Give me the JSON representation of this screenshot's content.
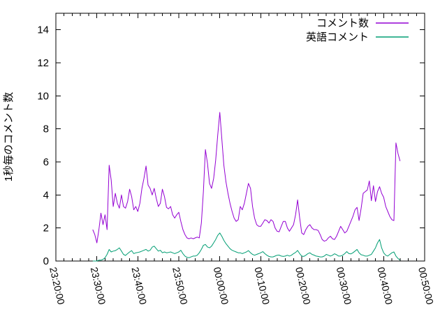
{
  "chart_data": {
    "type": "line",
    "title": "",
    "xlabel": "",
    "ylabel": "1秒毎のコメント数",
    "ylim": [
      0,
      15
    ],
    "grid": false,
    "legend_position": "top-right-inside",
    "background_color": "#ffffff",
    "axis_color": "#000000",
    "x_axis": {
      "start": "23:20:00",
      "end": "00:50:00",
      "span_seconds": 5400,
      "major_tick_interval_minutes": 10,
      "minor_tick_interval_minutes": 2,
      "tick_labels": [
        "23:20:00",
        "23:30:00",
        "23:40:00",
        "23:50:00",
        "00:00:00",
        "00:10:00",
        "00:20:00",
        "00:30:00",
        "00:40:00",
        "00:50:00"
      ]
    },
    "y_axis": {
      "tick_values": [
        0,
        2,
        4,
        6,
        8,
        10,
        12,
        14
      ],
      "tick_labels": [
        "0",
        "2",
        "4",
        "6",
        "8",
        "10",
        "12",
        "14"
      ]
    },
    "sampling": {
      "data_start_time": "23:29:00",
      "data_end_time": "00:44:00",
      "start_offset_seconds_from_axis_origin": 540,
      "interval_seconds": 30
    },
    "series": [
      {
        "name": "コメント数",
        "color": "#9400d3",
        "values": [
          1.9,
          1.6,
          1.1,
          1.9,
          2.9,
          2.2,
          2.8,
          1.9,
          5.8,
          4.9,
          3.3,
          4.1,
          3.5,
          3.2,
          4.0,
          3.3,
          3.2,
          3.6,
          4.35,
          3.9,
          3.1,
          3.3,
          3.0,
          3.5,
          4.4,
          5.0,
          5.75,
          4.6,
          4.4,
          4.0,
          4.4,
          3.8,
          3.3,
          3.5,
          4.35,
          3.9,
          3.25,
          3.16,
          3.3,
          2.8,
          2.6,
          2.8,
          2.95,
          2.4,
          1.9,
          1.6,
          1.4,
          1.35,
          1.4,
          1.35,
          1.4,
          1.45,
          1.4,
          2.3,
          4.2,
          6.75,
          5.9,
          4.7,
          4.4,
          5.0,
          6.1,
          7.6,
          9.0,
          7.4,
          5.8,
          4.8,
          4.1,
          3.5,
          3.0,
          2.6,
          2.4,
          2.5,
          3.3,
          3.1,
          3.5,
          4.1,
          4.7,
          4.4,
          3.3,
          2.6,
          2.2,
          2.1,
          2.1,
          2.3,
          2.5,
          2.45,
          2.3,
          2.5,
          2.4,
          2.0,
          1.8,
          1.77,
          2.1,
          2.4,
          2.4,
          2.0,
          1.8,
          2.0,
          2.2,
          2.8,
          3.7,
          2.6,
          1.7,
          1.6,
          1.9,
          2.1,
          2.2,
          2.0,
          1.9,
          1.9,
          1.85,
          1.6,
          1.3,
          1.2,
          1.25,
          1.4,
          1.5,
          1.35,
          1.3,
          1.5,
          1.8,
          2.1,
          1.9,
          1.7,
          1.8,
          2.1,
          2.4,
          2.7,
          3.1,
          3.25,
          2.45,
          3.2,
          4.1,
          4.2,
          4.3,
          4.85,
          3.65,
          4.56,
          3.6,
          4.2,
          4.5,
          4.1,
          3.86,
          3.3,
          3.0,
          2.7,
          2.5,
          2.45,
          7.15,
          6.5,
          6.05
        ]
      },
      {
        "name": "英語コメント",
        "color": "#009e73",
        "values": [
          0,
          0,
          0,
          0.05,
          0.05,
          0.1,
          0.2,
          0.4,
          0.7,
          0.55,
          0.6,
          0.63,
          0.7,
          0.8,
          0.6,
          0.4,
          0.34,
          0.45,
          0.55,
          0.63,
          0.45,
          0.5,
          0.52,
          0.55,
          0.6,
          0.65,
          0.7,
          0.6,
          0.65,
          0.84,
          0.9,
          0.75,
          0.6,
          0.65,
          0.5,
          0.55,
          0.5,
          0.52,
          0.55,
          0.5,
          0.45,
          0.5,
          0.55,
          0.65,
          0.45,
          0.3,
          0.22,
          0.2,
          0.25,
          0.3,
          0.3,
          0.35,
          0.5,
          0.7,
          0.95,
          1.0,
          0.85,
          0.8,
          0.9,
          1.1,
          1.3,
          1.55,
          1.7,
          1.5,
          1.25,
          1.05,
          0.9,
          0.75,
          0.65,
          0.6,
          0.55,
          0.5,
          0.5,
          0.45,
          0.5,
          0.55,
          0.63,
          0.5,
          0.4,
          0.35,
          0.4,
          0.45,
          0.5,
          0.57,
          0.45,
          0.35,
          0.28,
          0.25,
          0.25,
          0.3,
          0.35,
          0.36,
          0.3,
          0.28,
          0.3,
          0.35,
          0.3,
          0.35,
          0.45,
          0.52,
          0.64,
          0.45,
          0.3,
          0.28,
          0.35,
          0.45,
          0.5,
          0.4,
          0.36,
          0.3,
          0.28,
          0.25,
          0.25,
          0.3,
          0.4,
          0.35,
          0.3,
          0.35,
          0.44,
          0.38,
          0.3,
          0.3,
          0.35,
          0.45,
          0.57,
          0.45,
          0.43,
          0.5,
          0.6,
          0.7,
          0.5,
          0.38,
          0.35,
          0.3,
          0.3,
          0.35,
          0.4,
          0.6,
          0.8,
          1.1,
          1.3,
          0.8,
          0.5,
          0.35,
          0.3,
          0.4,
          0.5,
          0.55,
          0.3,
          0.15,
          0.05
        ]
      }
    ]
  }
}
